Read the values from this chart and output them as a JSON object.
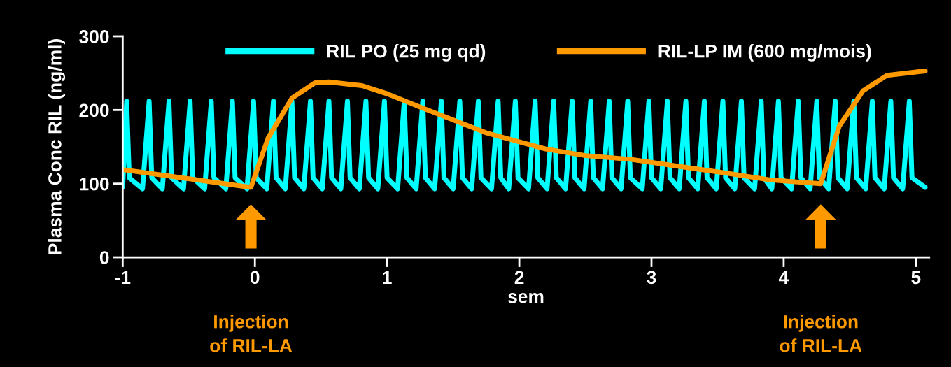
{
  "chart_data": {
    "type": "line",
    "xlabel": "sem",
    "ylabel": "Plasma Conc RIL (ng/ml)",
    "xlim": [
      -1,
      5.1
    ],
    "xticks": [
      -1,
      0,
      1,
      2,
      3,
      4,
      5
    ],
    "ylim": [
      0,
      300
    ],
    "yticks": [
      0,
      100,
      200,
      300
    ],
    "grid": false,
    "legend": "top",
    "marker": "none",
    "line_style": "solid",
    "series": [
      {
        "name": "RIL PO (25 mg qd)",
        "color": "#00ffff",
        "x": [
          -1,
          -0.97,
          -0.95,
          -0.85,
          -0.8,
          -0.78,
          -0.7,
          -0.65,
          -0.63,
          -0.54,
          -0.49,
          -0.47,
          -0.38,
          -0.33,
          -0.31,
          -0.22,
          -0.17,
          -0.15,
          -0.06,
          -0.01,
          0.01,
          0.09,
          0.14,
          0.16,
          0.23,
          0.28,
          0.3,
          0.37,
          0.42,
          0.44,
          0.51,
          0.56,
          0.58,
          0.65,
          0.7,
          0.72,
          0.79,
          0.84,
          0.86,
          0.93,
          0.98,
          1.0,
          1.08,
          1.13,
          1.15,
          1.22,
          1.27,
          1.29,
          1.36,
          1.41,
          1.43,
          1.5,
          1.55,
          1.57,
          1.64,
          1.69,
          1.71,
          1.79,
          1.84,
          1.86,
          1.92,
          1.97,
          1.99,
          2.07,
          2.12,
          2.14,
          2.21,
          2.26,
          2.28,
          2.35,
          2.4,
          2.42,
          2.49,
          2.54,
          2.56,
          2.63,
          2.68,
          2.7,
          2.77,
          2.82,
          2.84,
          2.93,
          2.98,
          3.0,
          3.07,
          3.12,
          3.14,
          3.21,
          3.26,
          3.28,
          3.35,
          3.4,
          3.42,
          3.49,
          3.54,
          3.56,
          3.63,
          3.68,
          3.7,
          3.78,
          3.83,
          3.85,
          3.91,
          3.96,
          3.98,
          4.06,
          4.11,
          4.13,
          4.2,
          4.25,
          4.27,
          4.34,
          4.39,
          4.41,
          4.48,
          4.53,
          4.55,
          4.62,
          4.67,
          4.69,
          4.76,
          4.81,
          4.83,
          4.9,
          4.95,
          4.97,
          5.07
        ],
        "values": [
          95,
          212,
          108,
          93,
          212,
          108,
          93,
          212,
          108,
          93,
          212,
          108,
          93,
          212,
          108,
          93,
          212,
          108,
          93,
          212,
          108,
          93,
          212,
          108,
          93,
          212,
          108,
          93,
          212,
          108,
          93,
          212,
          108,
          93,
          212,
          108,
          93,
          212,
          108,
          93,
          212,
          108,
          93,
          212,
          108,
          93,
          212,
          108,
          93,
          212,
          108,
          93,
          212,
          108,
          93,
          212,
          108,
          93,
          212,
          108,
          93,
          212,
          108,
          93,
          212,
          108,
          93,
          212,
          108,
          93,
          212,
          108,
          93,
          212,
          108,
          93,
          212,
          108,
          93,
          212,
          108,
          93,
          212,
          108,
          93,
          212,
          108,
          93,
          212,
          108,
          93,
          212,
          108,
          93,
          212,
          108,
          93,
          212,
          108,
          93,
          212,
          108,
          93,
          212,
          108,
          93,
          212,
          108,
          93,
          212,
          108,
          93,
          212,
          108,
          93,
          212,
          108,
          93,
          212,
          108,
          93,
          212,
          108,
          93,
          212,
          108,
          95
        ]
      },
      {
        "name": "RIL-LP IM (600 mg/mois)",
        "color": "#ff9900",
        "x": [
          -1,
          -0.03,
          0.1,
          0.28,
          0.455,
          0.56,
          0.81,
          1.0,
          1.25,
          1.75,
          2.2,
          2.5,
          2.84,
          3.3,
          3.54,
          3.9,
          4.28,
          4.42,
          4.6,
          4.78,
          5.07
        ],
        "values": [
          119,
          95,
          162,
          216,
          237,
          238,
          233,
          222,
          204,
          169,
          147,
          138,
          133,
          121,
          115,
          105,
          100,
          178,
          226,
          247,
          253
        ]
      }
    ],
    "annotations": [
      "Injection\nof RIL-LA",
      "Injection\nof RIL-LA"
    ]
  }
}
